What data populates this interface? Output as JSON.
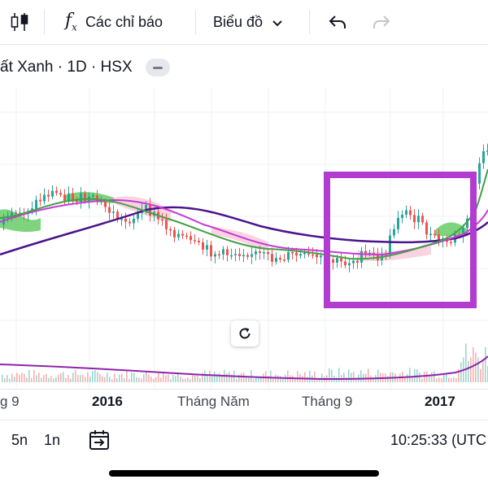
{
  "toolbar": {
    "indicators_label": "Các chỉ báo",
    "chart_type_label": "Biểu đồ",
    "fx_symbol": "f",
    "fx_sub": "x",
    "undo_icon": "undo-icon",
    "redo_icon": "redo-icon"
  },
  "legend": {
    "symbol_text": "ất Xanh · 1D · HSX"
  },
  "x_axis": {
    "labels": [
      "g 9",
      "2016",
      "Tháng Năm",
      "Tháng 9",
      "2017"
    ]
  },
  "bottom_bar": {
    "range_5n": "5n",
    "range_1n": "1n",
    "time": "10:25:33 (UTC"
  },
  "colors": {
    "up": "#26a69a",
    "down": "#ef5350",
    "ma_purple": "#4a148c",
    "ma_green": "#43a047",
    "ma_magenta": "#c73ad8",
    "cloud_green": "#66cc66",
    "cloud_pink": "#f8c8d8",
    "highlight": "#b23bd0",
    "volume_line": "#8e24aa"
  }
}
